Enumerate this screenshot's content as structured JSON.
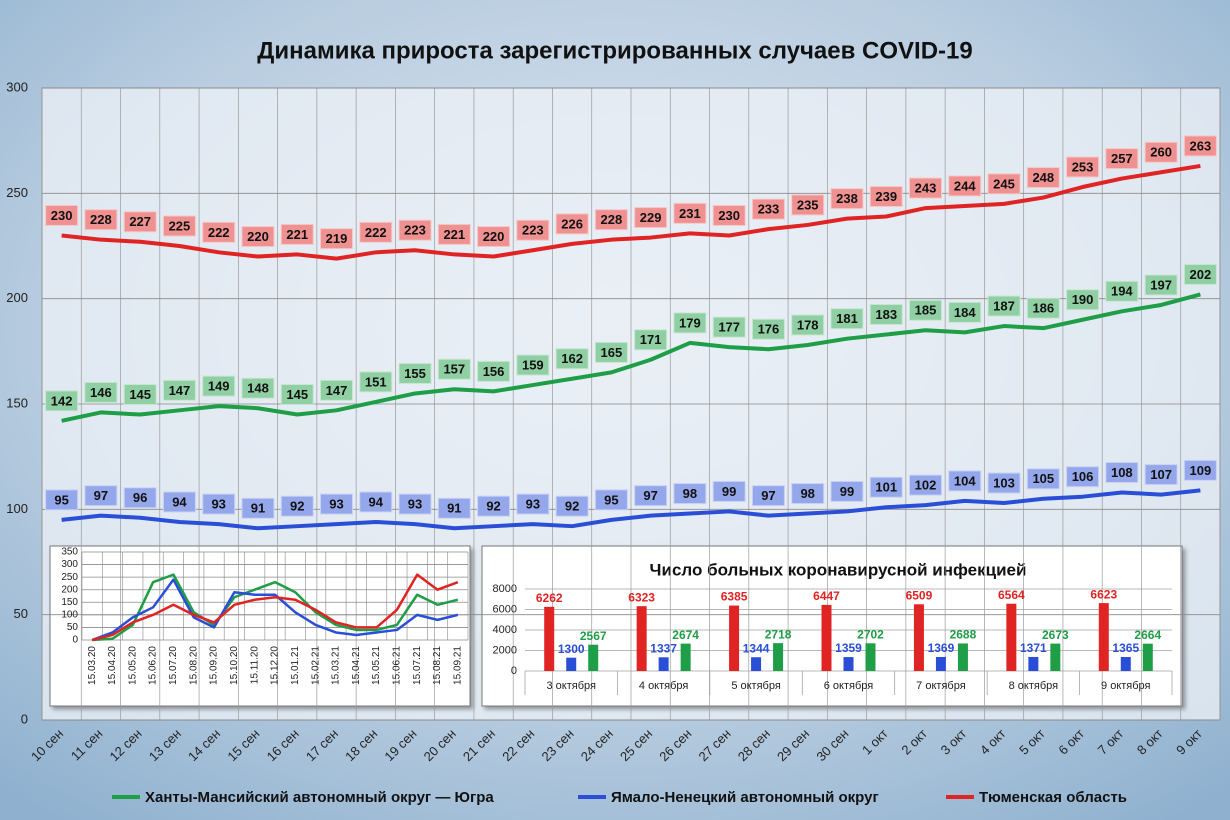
{
  "chart_data": [
    {
      "type": "line",
      "title": "Динамика прироста зарегистрированных случаев COVID-19",
      "categories": [
        "10 сен",
        "11 сен",
        "12 сен",
        "13 сен",
        "14 сен",
        "15 сен",
        "16 сен",
        "17 сен",
        "18 сен",
        "19 сен",
        "20 сен",
        "21 сен",
        "22 сен",
        "23 сен",
        "24 сен",
        "25 сен",
        "26 сен",
        "27 сен",
        "28 сен",
        "29 сен",
        "30 сен",
        "1 окт",
        "2 окт",
        "3 окт",
        "4 окт",
        "5 окт",
        "6 окт",
        "7 окт",
        "8 окт",
        "9 окт"
      ],
      "series": [
        {
          "name": "Ханты-Мансийский автономный округ — Югра",
          "color": "#1e9e46",
          "values": [
            142,
            146,
            145,
            147,
            149,
            148,
            145,
            147,
            151,
            155,
            157,
            156,
            159,
            162,
            165,
            171,
            179,
            177,
            176,
            178,
            181,
            183,
            185,
            184,
            187,
            186,
            190,
            194,
            197,
            202
          ]
        },
        {
          "name": "Ямало-Ненецкий автономный округ",
          "color": "#2a4fd6",
          "values": [
            95,
            97,
            96,
            94,
            93,
            91,
            92,
            93,
            94,
            93,
            91,
            92,
            93,
            92,
            95,
            97,
            98,
            99,
            97,
            98,
            99,
            101,
            102,
            104,
            103,
            105,
            106,
            108,
            107,
            109
          ]
        },
        {
          "name": "Тюменская область",
          "color": "#e02323",
          "values": [
            230,
            228,
            227,
            225,
            222,
            220,
            221,
            219,
            222,
            223,
            221,
            220,
            223,
            226,
            228,
            229,
            231,
            230,
            233,
            235,
            238,
            239,
            243,
            244,
            245,
            248,
            253,
            257,
            260,
            263
          ]
        }
      ],
      "ylim": [
        0,
        300
      ],
      "yticks": [
        0,
        50,
        100,
        150,
        200,
        250,
        300
      ],
      "grid": true
    },
    {
      "type": "line",
      "categories": [
        "15.03.20",
        "15.04.20",
        "15.05.20",
        "15.06.20",
        "15.07.20",
        "15.08.20",
        "15.09.20",
        "15.10.20",
        "15.11.20",
        "15.12.20",
        "15.01.21",
        "15.02.21",
        "15.03.21",
        "15.04.21",
        "15.05.21",
        "15.06.21",
        "15.07.21",
        "15.08.21",
        "15.09.21"
      ],
      "series": [
        {
          "color": "#1e9e46",
          "values": [
            0,
            5,
            60,
            230,
            260,
            110,
            60,
            170,
            200,
            230,
            190,
            110,
            60,
            40,
            40,
            60,
            180,
            140,
            160
          ]
        },
        {
          "color": "#2a4fd6",
          "values": [
            0,
            30,
            90,
            130,
            240,
            90,
            50,
            190,
            180,
            180,
            110,
            60,
            30,
            20,
            30,
            40,
            100,
            80,
            100
          ]
        },
        {
          "color": "#e02323",
          "values": [
            0,
            20,
            70,
            100,
            140,
            100,
            70,
            140,
            160,
            170,
            160,
            120,
            70,
            50,
            50,
            120,
            260,
            200,
            230
          ]
        }
      ],
      "ylim": [
        0,
        350
      ],
      "yticks": [
        0,
        50,
        100,
        150,
        200,
        250,
        300,
        350
      ],
      "grid": true
    },
    {
      "type": "bar",
      "title": "Число больных коронавирусной инфекцией",
      "categories": [
        "3 октября",
        "4 октября",
        "5 октября",
        "6 октября",
        "7 октября",
        "8 октября",
        "9 октября"
      ],
      "series": [
        {
          "color": "#e02323",
          "values": [
            6262,
            6323,
            6385,
            6447,
            6509,
            6564,
            6623
          ]
        },
        {
          "color": "#2a4fd6",
          "values": [
            1300,
            1337,
            1344,
            1359,
            1369,
            1371,
            1365
          ]
        },
        {
          "color": "#1e9e46",
          "values": [
            2567,
            2674,
            2718,
            2702,
            2688,
            2673,
            2664
          ]
        }
      ],
      "ylim": [
        0,
        8000
      ],
      "yticks": [
        0,
        2000,
        4000,
        6000,
        8000
      ],
      "grid": true
    }
  ]
}
